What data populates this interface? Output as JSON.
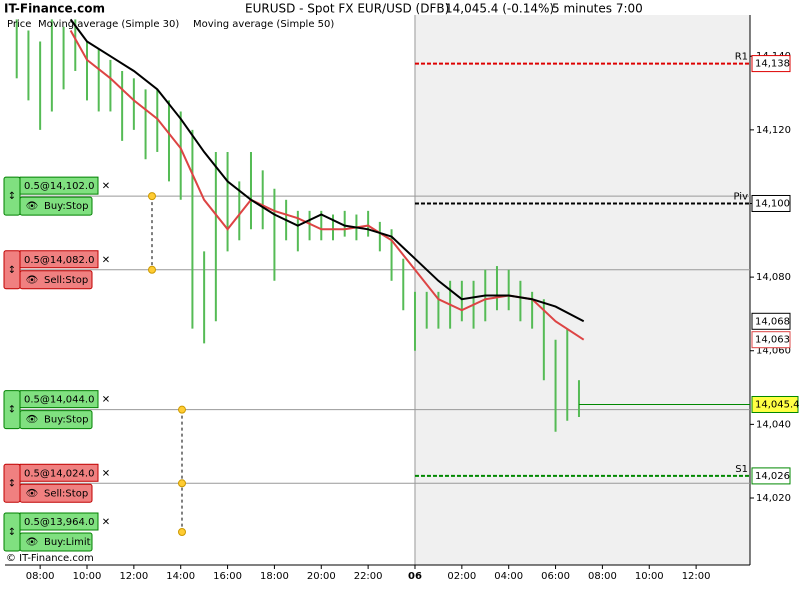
{
  "chart_data": {
    "type": "trading",
    "site": "IT-Finance.com",
    "copyright": "© IT-Finance.com",
    "title": "EURUSD - Spot FX EUR/USD (DFB)",
    "quote": "14,045.4 (-0.14%)",
    "interval": "5 minutes  7:00",
    "xlim": [
      6.5,
      38.3
    ],
    "ylim": [
      14001.8,
      14151.2
    ],
    "session_start": 24,
    "xticks": [
      {
        "value": 8,
        "label": "08:00"
      },
      {
        "value": 10,
        "label": "10:00"
      },
      {
        "value": 12,
        "label": "12:00"
      },
      {
        "value": 14,
        "label": "14:00"
      },
      {
        "value": 16,
        "label": "16:00"
      },
      {
        "value": 18,
        "label": "18:00"
      },
      {
        "value": 20,
        "label": "20:00"
      },
      {
        "value": 22,
        "label": "22:00"
      },
      {
        "value": 24,
        "label": "06"
      },
      {
        "value": 26,
        "label": "02:00"
      },
      {
        "value": 28,
        "label": "04:00"
      },
      {
        "value": 30,
        "label": "06:00"
      },
      {
        "value": 32,
        "label": "08:00"
      },
      {
        "value": 34,
        "label": "10:00"
      },
      {
        "value": 36,
        "label": "12:00"
      }
    ],
    "yticks": [
      {
        "value": 14020,
        "label": "14,020"
      },
      {
        "value": 14040,
        "label": "14,040"
      },
      {
        "value": 14060,
        "label": "14,060"
      },
      {
        "value": 14080,
        "label": "14,080"
      },
      {
        "value": 14100,
        "label": "14,100"
      },
      {
        "value": 14120,
        "label": "14,120"
      },
      {
        "value": 14140,
        "label": "14,140"
      }
    ],
    "price": {
      "name": "Price",
      "color": "#55bb55",
      "x": [
        7,
        7.5,
        8,
        8.5,
        9,
        9.5,
        10,
        10.5,
        11,
        11.5,
        12,
        12.5,
        13,
        13.5,
        14,
        14.5,
        15,
        15.5,
        16,
        16.5,
        17,
        17.5,
        18,
        18.5,
        19,
        19.5,
        20,
        20.5,
        21,
        21.5,
        22,
        22.5,
        23,
        23.5,
        24,
        24.5,
        25,
        25.5,
        26,
        26.5,
        27,
        27.5,
        28,
        28.5,
        29,
        29.5,
        30,
        30.5,
        31
      ],
      "high": [
        14150,
        14147,
        14144,
        14150,
        14148,
        14150,
        14144,
        14142,
        14139,
        14136,
        14134,
        14131,
        14131,
        14128,
        14125,
        14120,
        14087,
        14114,
        14114,
        14106,
        14114,
        14109,
        14104,
        14101,
        14098,
        14098,
        14098,
        14097,
        14098,
        14097,
        14098,
        14095,
        14093,
        14085,
        14076,
        14076,
        14076,
        14079,
        14079,
        14079,
        14082,
        14083,
        14082,
        14079,
        14076,
        14074,
        14063,
        14066,
        14052
      ],
      "low": [
        14134,
        14128,
        14120,
        14125,
        14131,
        14136,
        14128,
        14125,
        14125,
        14117,
        14120,
        14112,
        14114,
        14106,
        14101,
        14066,
        14062,
        14068,
        14087,
        14090,
        14093,
        14093,
        14079,
        14090,
        14087,
        14090,
        14090,
        14090,
        14091,
        14090,
        14091,
        14087,
        14079,
        14071,
        14060,
        14066,
        14066,
        14066,
        14068,
        14066,
        14068,
        14071,
        14071,
        14068,
        14066,
        14052,
        14038,
        14041,
        14042
      ]
    },
    "series": [
      {
        "name": "Moving average (Simple 30)",
        "color": "#dd4444",
        "x": [
          9.3,
          10,
          11,
          12,
          13,
          14,
          15,
          16,
          17,
          18,
          19,
          20,
          21,
          22,
          23,
          24,
          25,
          26,
          27,
          28,
          29,
          30,
          31.2
        ],
        "values": [
          14147,
          14139,
          14134,
          14128,
          14123,
          14115,
          14101,
          14093,
          14101,
          14098,
          14096,
          14093,
          14093,
          14094,
          14090,
          14082,
          14074,
          14071,
          14074,
          14075,
          14074,
          14068,
          14063
        ]
      },
      {
        "name": "Moving average (Simple 50)",
        "color": "#000000",
        "x": [
          9.3,
          10,
          11,
          12,
          13,
          14,
          15,
          16,
          17,
          18,
          19,
          20,
          21,
          22,
          23,
          24,
          25,
          26,
          27,
          28,
          29,
          30,
          31.2
        ],
        "values": [
          14150,
          14144,
          14140,
          14136,
          14131,
          14123,
          14114,
          14106,
          14101,
          14097,
          14094,
          14097,
          14094,
          14093,
          14091,
          14085,
          14079,
          14074,
          14075,
          14075,
          14074,
          14072,
          14068
        ]
      }
    ],
    "levels": [
      {
        "name": "R1",
        "value": 14138,
        "label": "14,138",
        "color": "#dd0000"
      },
      {
        "name": "Piv",
        "value": 14100,
        "label": "14,100",
        "color": "#000000"
      },
      {
        "name": "S1",
        "value": 14026,
        "label": "14,026",
        "color": "#008800"
      }
    ],
    "markers": [
      {
        "value": 14068,
        "label": "14,068",
        "color": "#000000"
      },
      {
        "value": 14063,
        "label": "14,063",
        "color": "#dd4444"
      },
      {
        "value": 14045.4,
        "label": "14,045.4",
        "color": "#008800"
      }
    ],
    "orders": [
      {
        "label": "0.5@14,102.0",
        "action": "Buy:Stop",
        "value": 14102
      },
      {
        "label": "0.5@14,082.0",
        "action": "Sell:Stop",
        "value": 14082
      },
      {
        "label": "0.5@14,044.0",
        "action": "Buy:Stop",
        "value": 14044
      },
      {
        "label": "0.5@14,024.0",
        "action": "Sell:Stop",
        "value": 14024
      },
      {
        "label": "0.5@13,964.0",
        "action": "Buy:Limit",
        "value": 13964
      }
    ]
  }
}
